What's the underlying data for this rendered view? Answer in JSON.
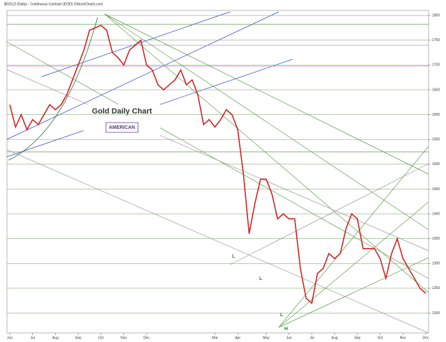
{
  "chart_data": {
    "type": "line",
    "title": "Gold Daily Chart",
    "subtitle": "$GOLD (Daily) - Continuous Contract (EOD) ©StockCharts.com",
    "logo": "AMERICAN",
    "categories": [
      "Jun",
      null,
      null,
      null,
      "Jul",
      null,
      null,
      null,
      "Aug",
      null,
      null,
      null,
      "Sep",
      null,
      null,
      null,
      "Oct",
      null,
      null,
      null,
      "Nov",
      null,
      null,
      null,
      "Dec",
      null,
      null,
      null,
      null,
      null,
      null,
      null,
      null,
      null,
      null,
      null,
      "Mar",
      null,
      null,
      null,
      "Apr",
      null,
      null,
      null,
      null,
      "May",
      null,
      null,
      null,
      "Jun",
      null,
      null,
      null,
      "Jul",
      null,
      null,
      null,
      "Aug",
      null,
      null,
      null,
      "Sep",
      null,
      null,
      null,
      "Oct",
      null,
      null,
      null,
      "Nov",
      null,
      null,
      null,
      "Dec"
    ],
    "series": [
      {
        "name": "Gold",
        "color": "#d42020",
        "values": [
          1620,
          1575,
          1600,
          1570,
          1590,
          1580,
          1600,
          1620,
          1610,
          1620,
          1640,
          1670,
          1700,
          1730,
          1770,
          1775,
          1780,
          1770,
          1725,
          1715,
          1700,
          1730,
          1740,
          1750,
          1700,
          1690,
          1660,
          1650,
          1660,
          1670,
          1690,
          1660,
          1670,
          1640,
          1580,
          1590,
          1575,
          1590,
          1610,
          1600,
          1570,
          1480,
          1360,
          1420,
          1470,
          1470,
          1440,
          1390,
          1400,
          1390,
          1390,
          1290,
          1230,
          1220,
          1280,
          1290,
          1320,
          1310,
          1320,
          1370,
          1400,
          1390,
          1330,
          1330,
          1330,
          1310,
          1270,
          1320,
          1350,
          1310,
          1290,
          1270,
          1250,
          1240
        ]
      }
    ],
    "ylim": [
      1160,
      1810
    ],
    "yticks": [
      1200,
      1250,
      1300,
      1350,
      1400,
      1450,
      1500,
      1550,
      1600,
      1650,
      1700,
      1750,
      1800
    ],
    "grid": true,
    "annotations": [
      "L",
      "L",
      "L",
      "H"
    ]
  }
}
